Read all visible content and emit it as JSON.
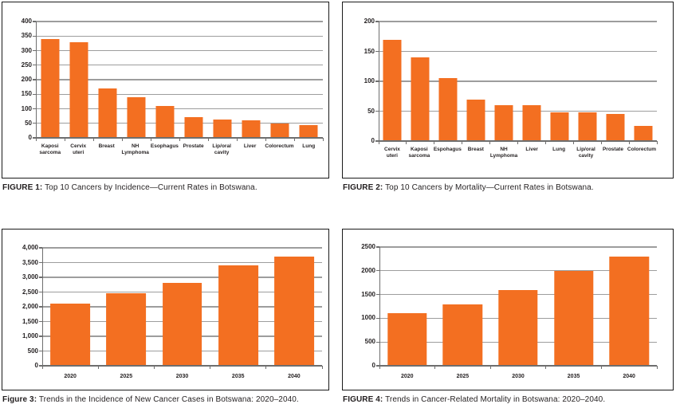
{
  "colors": {
    "bar": "#f36f21",
    "gridline": "#9d9d9d",
    "axis": "#6e6e6e",
    "panel_border": "#1a1a1a",
    "text": "#231f20",
    "background": "#ffffff"
  },
  "figures": [
    {
      "caption_prefix": "FIGURE 1:",
      "caption_text": "Top 10 Cancers by Incidence—Current Rates in Botswana."
    },
    {
      "caption_prefix": "FIGURE 2:",
      "caption_text": "Top 10 Cancers by Mortality—Current Rates in Botswana."
    },
    {
      "caption_prefix": "Figure 3:",
      "caption_text": "Trends in the Incidence of New Cancer Cases in Botswana: 2020–2040."
    },
    {
      "caption_prefix": "FIGURE 4:",
      "caption_text": "Trends in Cancer-Related Mortality in Botswana: 2020–2040."
    }
  ],
  "chart_data": [
    {
      "type": "bar",
      "title": "FIGURE 1: Top 10 Cancers by Incidence—Current Rates in Botswana.",
      "categories": [
        "Kaposi sarcoma",
        "Cervix uteri",
        "Breast",
        "NH Lymphoma",
        "Esophagus",
        "Prostate",
        "Lip/oral cavity",
        "Liver",
        "Colorectum",
        "Lung"
      ],
      "values": [
        340,
        330,
        170,
        140,
        110,
        70,
        62,
        61,
        48,
        44
      ],
      "xlabel": "",
      "ylabel": "",
      "ylim": [
        0,
        400
      ],
      "ytick_labels": [
        "0",
        "50",
        "100",
        "150",
        "200",
        "250",
        "300",
        "350",
        "400"
      ],
      "grid": true,
      "legend": false
    },
    {
      "type": "bar",
      "title": "FIGURE 2: Top 10 Cancers by Mortality—Current Rates in Botswana.",
      "categories": [
        "Cervix uteri",
        "Kaposi sarcoma",
        "Espohagus",
        "Breast",
        "NH Lymphoma",
        "Liver",
        "Lung",
        "Lip/oral cavity",
        "Prostate",
        "Colorectum"
      ],
      "values": [
        170,
        140,
        105,
        70,
        60,
        60,
        48,
        48,
        45,
        25
      ],
      "xlabel": "",
      "ylabel": "",
      "ylim": [
        0,
        200
      ],
      "ytick_labels": [
        "0",
        "50",
        "100",
        "150",
        "200"
      ],
      "grid": true,
      "legend": false
    },
    {
      "type": "bar",
      "title": "Figure 3: Trends in the Incidence of New Cancer Cases in Botswana: 2020–2040.",
      "categories": [
        "2020",
        "2025",
        "2030",
        "2035",
        "2040"
      ],
      "values": [
        2100,
        2450,
        2800,
        3400,
        3700
      ],
      "xlabel": "",
      "ylabel": "",
      "ylim": [
        0,
        4000
      ],
      "ytick_labels": [
        "0",
        "500",
        "1,000",
        "1,500",
        "2,000",
        "2,500",
        "3,000",
        "3,500",
        "4,000"
      ],
      "grid": true,
      "legend": false
    },
    {
      "type": "bar",
      "title": "FIGURE 4: Trends in Cancer-Related Mortality in Botswana: 2020–2040.",
      "categories": [
        "2020",
        "2025",
        "2030",
        "2035",
        "2040"
      ],
      "values": [
        1100,
        1300,
        1600,
        2000,
        2300
      ],
      "xlabel": "",
      "ylabel": "",
      "ylim": [
        0,
        2500
      ],
      "ytick_labels": [
        "0",
        "500",
        "1000",
        "1500",
        "2000",
        "2500"
      ],
      "grid": true,
      "legend": false
    }
  ]
}
